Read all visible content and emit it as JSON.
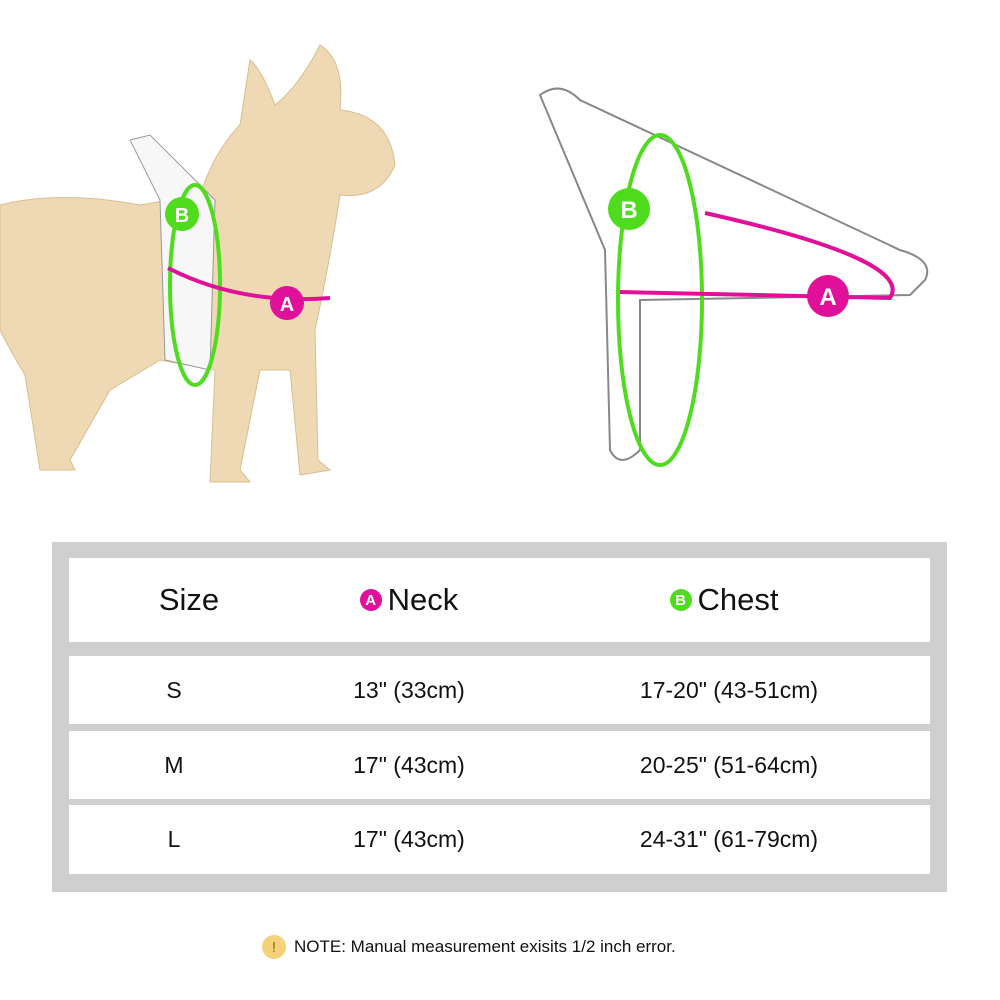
{
  "colors": {
    "neck": "#e0109a",
    "chest": "#4fdc1e",
    "table_frame": "#cfcfcf",
    "note_icon": "#f5d27a"
  },
  "diagram": {
    "label_a": "A",
    "label_b": "B"
  },
  "table": {
    "headers": {
      "size": "Size",
      "neck_badge": "A",
      "neck": "Neck",
      "chest_badge": "B",
      "chest": "Chest"
    },
    "rows": [
      {
        "size": "S",
        "neck": "13\" (33cm)",
        "chest": "17-20\" (43-51cm)"
      },
      {
        "size": "M",
        "neck": "17\" (43cm)",
        "chest": "20-25\" (51-64cm)"
      },
      {
        "size": "L",
        "neck": "17\" (43cm)",
        "chest": "24-31\" (61-79cm)"
      }
    ]
  },
  "note": {
    "icon": "exclamation-icon",
    "symbol": "!",
    "text": "NOTE: Manual measurement exisits 1/2 inch error."
  }
}
